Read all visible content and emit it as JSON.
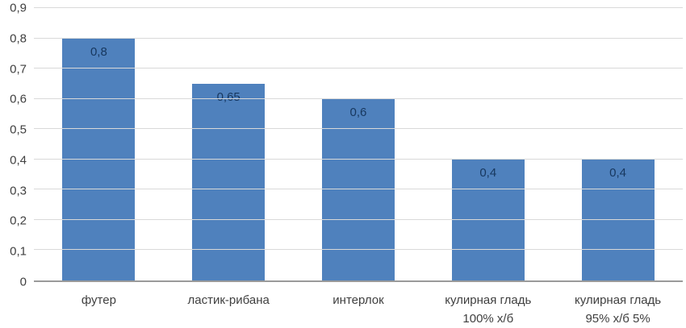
{
  "chart_data": {
    "type": "bar",
    "categories": [
      "футер",
      "ластик-рибана",
      "интерлок",
      "кулирная гладь\n100% х/б",
      "кулирная гладь\n95% х/б 5%"
    ],
    "values": [
      0.8,
      0.65,
      0.6,
      0.4,
      0.4
    ],
    "value_labels": [
      "0,8",
      "0,65",
      "0,6",
      "0,4",
      "0,4"
    ],
    "y_ticks": [
      "0",
      "0,1",
      "0,2",
      "0,3",
      "0,4",
      "0,5",
      "0,6",
      "0,7",
      "0,8",
      "0,9"
    ],
    "ylim": [
      0,
      0.9
    ],
    "grid": true,
    "legend": "none",
    "title": "",
    "xlabel": "",
    "ylabel": "",
    "bar_color": "#4F81BD",
    "value_label_color": "#17375E",
    "gridline_color": "#d9d9d9",
    "axis_color": "#9a9a9a",
    "tick_label_color": "#404040"
  }
}
